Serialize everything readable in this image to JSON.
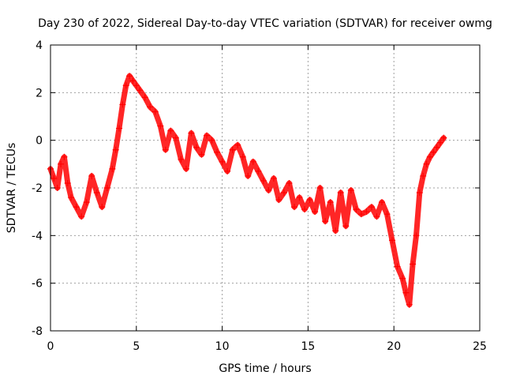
{
  "chart_data": {
    "type": "scatter",
    "title": "Day 230 of 2022, Sidereal Day-to-day VTEC variation (SDTVAR) for receiver owmg",
    "xlabel": "GPS time / hours",
    "ylabel": "SDTVAR / TECUs",
    "xlim": [
      0,
      25
    ],
    "ylim": [
      -8,
      4
    ],
    "xticks": [
      0,
      5,
      10,
      15,
      20,
      25
    ],
    "yticks": [
      -8,
      -6,
      -4,
      -2,
      0,
      2,
      4
    ],
    "xtick_labels": [
      "0",
      "5",
      "10",
      "15",
      "20",
      "25"
    ],
    "ytick_labels": [
      "-8",
      "-6",
      "-4",
      "-2",
      "0",
      "2",
      "4"
    ],
    "grid": true,
    "marker": "+",
    "series": [
      {
        "name": "SDTVAR",
        "color": "#ff0000",
        "x": [
          0.0,
          0.2,
          0.4,
          0.6,
          0.8,
          1.0,
          1.2,
          1.5,
          1.8,
          2.1,
          2.4,
          2.7,
          3.0,
          3.3,
          3.6,
          3.8,
          4.0,
          4.2,
          4.4,
          4.6,
          4.8,
          5.0,
          5.2,
          5.5,
          5.8,
          6.1,
          6.4,
          6.7,
          7.0,
          7.3,
          7.6,
          7.9,
          8.2,
          8.5,
          8.8,
          9.1,
          9.4,
          9.7,
          10.0,
          10.3,
          10.6,
          10.9,
          11.2,
          11.5,
          11.8,
          12.1,
          12.4,
          12.7,
          13.0,
          13.3,
          13.6,
          13.9,
          14.2,
          14.5,
          14.8,
          15.1,
          15.4,
          15.7,
          16.0,
          16.3,
          16.6,
          16.9,
          17.2,
          17.5,
          17.8,
          18.1,
          18.4,
          18.7,
          19.0,
          19.3,
          19.6,
          19.9,
          20.2,
          20.5,
          20.7,
          20.9,
          21.1,
          21.3,
          21.5,
          21.7,
          21.9,
          22.1,
          22.3,
          22.5,
          22.7,
          22.9
        ],
        "y": [
          -1.2,
          -1.6,
          -2.0,
          -1.0,
          -0.7,
          -1.8,
          -2.4,
          -2.8,
          -3.2,
          -2.6,
          -1.5,
          -2.2,
          -2.8,
          -2.0,
          -1.2,
          -0.4,
          0.5,
          1.5,
          2.3,
          2.7,
          2.5,
          2.3,
          2.1,
          1.8,
          1.4,
          1.2,
          0.6,
          -0.4,
          0.4,
          0.1,
          -0.8,
          -1.2,
          0.3,
          -0.3,
          -0.6,
          0.2,
          0.0,
          -0.5,
          -0.9,
          -1.3,
          -0.4,
          -0.2,
          -0.7,
          -1.5,
          -0.9,
          -1.3,
          -1.7,
          -2.1,
          -1.6,
          -2.5,
          -2.2,
          -1.8,
          -2.8,
          -2.4,
          -2.9,
          -2.5,
          -3.0,
          -2.0,
          -3.4,
          -2.6,
          -3.8,
          -2.2,
          -3.6,
          -2.1,
          -2.9,
          -3.1,
          -3.0,
          -2.8,
          -3.2,
          -2.6,
          -3.1,
          -4.2,
          -5.3,
          -5.8,
          -6.4,
          -6.9,
          -5.2,
          -4.0,
          -2.2,
          -1.5,
          -1.0,
          -0.7,
          -0.5,
          -0.3,
          -0.1,
          0.1
        ]
      }
    ]
  }
}
